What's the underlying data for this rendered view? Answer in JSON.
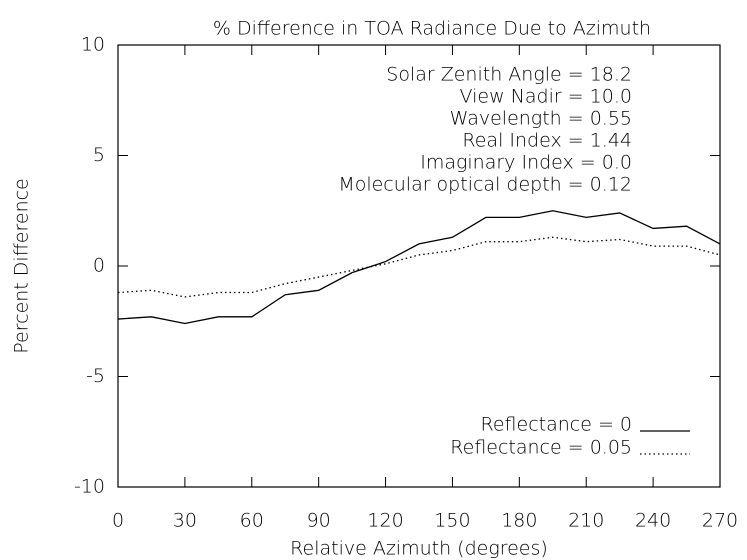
{
  "chart_data": {
    "type": "line",
    "title": "% Difference in TOA Radiance Due to Azimuth",
    "xlabel": "Relative Azimuth (degrees)",
    "ylabel": "Percent Difference",
    "annotations": [
      "Solar Zenith Angle = 18.2",
      "View Nadir = 10.0",
      "Wavelength = 0.55",
      "Real Index = 1.44",
      "Imaginary Index = 0.0",
      "Molecular optical depth = 0.12"
    ],
    "x": [
      0,
      15,
      30,
      45,
      60,
      75,
      90,
      105,
      120,
      135,
      150,
      165,
      180,
      195,
      210,
      225,
      240,
      255,
      270
    ],
    "series": [
      {
        "name": "Reflectance = 0",
        "color": "#000000",
        "dash": "solid",
        "values": [
          -2.4,
          -2.3,
          -2.6,
          -2.3,
          -2.3,
          -1.3,
          -1.1,
          -0.3,
          0.2,
          1.0,
          1.3,
          2.2,
          2.2,
          2.5,
          2.2,
          2.4,
          1.7,
          1.8,
          1.0
        ]
      },
      {
        "name": "Reflectance = 0.05",
        "color": "#000000",
        "dash": "dotted",
        "values": [
          -1.2,
          -1.1,
          -1.4,
          -1.2,
          -1.2,
          -0.8,
          -0.5,
          -0.2,
          0.1,
          0.5,
          0.7,
          1.1,
          1.1,
          1.3,
          1.1,
          1.2,
          0.9,
          0.9,
          0.5
        ]
      }
    ],
    "xlim": [
      0,
      270
    ],
    "xticks": [
      0,
      30,
      60,
      90,
      120,
      150,
      180,
      210,
      240,
      270
    ],
    "ylim": [
      -10,
      10
    ],
    "yticks": [
      -10,
      -5,
      0,
      5,
      10
    ],
    "grid": false,
    "legend": "lower right"
  }
}
